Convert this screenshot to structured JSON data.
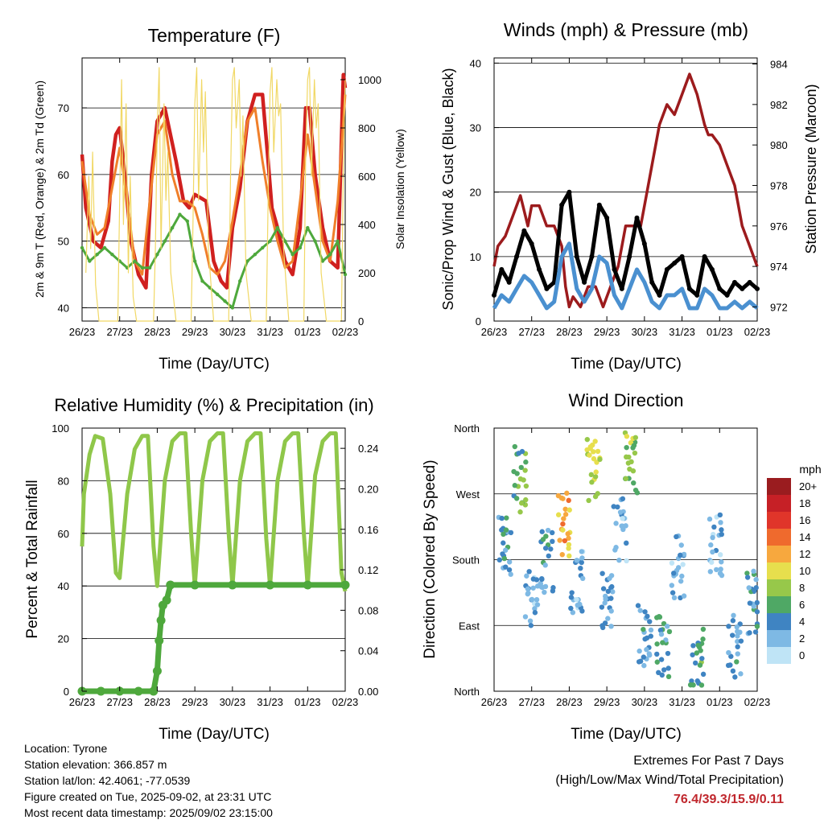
{
  "chart_data": [
    {
      "type": "line",
      "title": "Temperature (F)",
      "xlabel": "Time (Day/UTC)",
      "ylabel": "2m & 9m T (Red, Orange) & 2m Td (Green)",
      "ylabel_right": "Solar Insolation (Yellow)",
      "x_ticks": [
        "26/23",
        "27/23",
        "28/23",
        "29/23",
        "30/23",
        "31/23",
        "01/23",
        "02/23"
      ],
      "y_ticks": [
        40,
        50,
        60,
        70
      ],
      "y_right_ticks": [
        0,
        200,
        400,
        600,
        800,
        1000
      ],
      "ylim": [
        38,
        77.5
      ],
      "ylim_right": [
        0,
        1090
      ],
      "grid": true,
      "series": [
        {
          "color": "#d0201f",
          "x": [
            0,
            0.1,
            0.3,
            0.5,
            0.7,
            0.8,
            0.9,
            1.0,
            1.1,
            1.3,
            1.5,
            1.7,
            1.85,
            2.0,
            2.2,
            2.5,
            2.7,
            2.85,
            3.0,
            3.3,
            3.5,
            3.7,
            3.85,
            4.0,
            4.2,
            4.4,
            4.6,
            4.8,
            4.95,
            5.05,
            5.2,
            5.4,
            5.6,
            5.8,
            5.95,
            6.05,
            6.2,
            6.4,
            6.6,
            6.8,
            6.95,
            7.0
          ],
          "y": [
            63,
            55,
            50,
            49,
            53,
            62,
            66,
            67,
            62,
            50,
            45,
            43,
            60,
            68,
            70,
            62,
            56,
            55,
            57,
            56,
            47,
            44,
            43,
            52,
            58,
            68,
            72,
            72,
            62,
            55,
            52,
            47,
            45,
            52,
            70,
            70,
            60,
            52,
            47,
            46,
            75,
            73
          ]
        },
        {
          "color": "#f07f2a",
          "x": [
            0,
            0.2,
            0.4,
            0.6,
            0.8,
            1.0,
            1.2,
            1.4,
            1.6,
            1.8,
            2.0,
            2.2,
            2.4,
            2.6,
            2.8,
            3.0,
            3.2,
            3.4,
            3.6,
            3.8,
            4.0,
            4.2,
            4.4,
            4.6,
            4.8,
            5.0,
            5.2,
            5.4,
            5.6,
            5.8,
            6.0,
            6.2,
            6.4,
            6.6,
            6.8,
            7.0
          ],
          "y": [
            62,
            54,
            51,
            52,
            58,
            64,
            56,
            47,
            45,
            56,
            66,
            68,
            60,
            56,
            56,
            55,
            51,
            46,
            45,
            47,
            53,
            60,
            68,
            70,
            62,
            55,
            50,
            46,
            47,
            56,
            66,
            58,
            50,
            47,
            56,
            72
          ]
        },
        {
          "color": "#4ea83c",
          "x": [
            0,
            0.2,
            0.4,
            0.6,
            0.8,
            1.0,
            1.2,
            1.4,
            1.6,
            1.8,
            2.0,
            2.2,
            2.4,
            2.6,
            2.8,
            3.0,
            3.2,
            3.4,
            3.6,
            3.8,
            4.0,
            4.2,
            4.4,
            4.6,
            4.8,
            5.0,
            5.2,
            5.4,
            5.6,
            5.8,
            6.0,
            6.2,
            6.4,
            6.6,
            6.8,
            7.0
          ],
          "y": [
            49,
            47,
            48,
            49,
            48,
            47,
            46,
            47,
            46,
            46,
            48,
            50,
            52,
            54,
            53,
            47,
            44,
            43,
            42,
            41,
            40,
            44,
            47,
            48,
            49,
            50,
            52,
            50,
            48,
            49,
            52,
            50,
            47,
            48,
            50,
            45
          ]
        },
        {
          "color": "#f1d865",
          "x": [
            0.1,
            0.18,
            0.23,
            0.28,
            0.36,
            0.45,
            0.95,
            1.0,
            1.05,
            1.1,
            1.17,
            1.23,
            1.28,
            1.36,
            1.45,
            1.9,
            1.95,
            2.0,
            2.05,
            2.1,
            2.18,
            2.23,
            2.28,
            2.36,
            2.5,
            2.9,
            2.95,
            3.0,
            3.05,
            3.1,
            3.18,
            3.23,
            3.28,
            3.36,
            3.5,
            3.9,
            3.95,
            4.0,
            4.05,
            4.1,
            4.18,
            4.23,
            4.28,
            4.36,
            4.5,
            4.9,
            4.95,
            5.0,
            5.05,
            5.1,
            5.18,
            5.23,
            5.28,
            5.36,
            5.5,
            5.9,
            5.95,
            6.0,
            6.05,
            6.1,
            6.18,
            6.23,
            6.28,
            6.36,
            6.5,
            6.9,
            6.95,
            7.0
          ],
          "y_right": [
            200,
            600,
            300,
            700,
            150,
            0,
            0,
            500,
            1000,
            400,
            900,
            200,
            600,
            100,
            0,
            0,
            300,
            800,
            1050,
            300,
            900,
            500,
            700,
            200,
            0,
            0,
            400,
            900,
            1050,
            500,
            1000,
            700,
            950,
            300,
            0,
            0,
            600,
            1000,
            1050,
            800,
            1000,
            600,
            850,
            200,
            0,
            0,
            500,
            950,
            1050,
            700,
            1000,
            850,
            900,
            300,
            0,
            0,
            700,
            1000,
            1050,
            600,
            1000,
            800,
            900,
            200,
            0,
            0,
            650,
            1000
          ]
        }
      ]
    },
    {
      "type": "line",
      "title": "Winds (mph) & Pressure (mb)",
      "xlabel": "Time (Day/UTC)",
      "ylabel": "Sonic/Prop Wind & Gust (Blue, Black)",
      "ylabel_right": "Station Pressure (Maroon)",
      "x_ticks": [
        "26/23",
        "27/23",
        "28/23",
        "29/23",
        "30/23",
        "31/23",
        "01/23",
        "02/23"
      ],
      "y_ticks": [
        0,
        10,
        20,
        30,
        40
      ],
      "y_right_ticks": [
        972,
        974,
        976,
        978,
        980,
        982,
        984
      ],
      "ylim": [
        0,
        40.8
      ],
      "ylim_right": [
        971.3,
        984.3
      ],
      "grid": true,
      "series": [
        {
          "color": "#9c1b1d",
          "x": [
            0,
            0.1,
            0.3,
            0.5,
            0.7,
            0.9,
            1.0,
            1.2,
            1.4,
            1.6,
            1.8,
            1.9,
            2.0,
            2.1,
            2.3,
            2.5,
            2.7,
            2.9,
            3.1,
            3.3,
            3.5,
            3.7,
            3.9,
            4.0,
            4.2,
            4.4,
            4.6,
            4.8,
            5.0,
            5.2,
            5.4,
            5.6,
            5.7,
            5.8,
            6.0,
            6.2,
            6.4,
            6.6,
            6.8,
            7.0
          ],
          "y_right": [
            974,
            975,
            975.5,
            976.5,
            977.5,
            976,
            977,
            977,
            976,
            976,
            975,
            973,
            972,
            972.5,
            972,
            973,
            973,
            972,
            973,
            974,
            976,
            976,
            976,
            977,
            979,
            981,
            982,
            981.5,
            982.5,
            983.5,
            982.5,
            981,
            980.5,
            980.5,
            980,
            979,
            978,
            976,
            975,
            974
          ]
        },
        {
          "color": "#000000",
          "x": [
            0,
            0.2,
            0.4,
            0.6,
            0.8,
            1.0,
            1.2,
            1.4,
            1.6,
            1.8,
            2.0,
            2.2,
            2.4,
            2.6,
            2.8,
            3.0,
            3.2,
            3.4,
            3.6,
            3.8,
            4.0,
            4.2,
            4.4,
            4.6,
            4.8,
            5.0,
            5.2,
            5.4,
            5.6,
            5.8,
            6.0,
            6.2,
            6.4,
            6.6,
            6.8,
            7.0
          ],
          "y": [
            4,
            8,
            6,
            10,
            14,
            12,
            8,
            5,
            6,
            18,
            20,
            10,
            6,
            10,
            18,
            16,
            8,
            5,
            10,
            16,
            12,
            6,
            4,
            8,
            9,
            10,
            5,
            4,
            10,
            8,
            5,
            4,
            6,
            5,
            6,
            5
          ]
        },
        {
          "color": "#4a90d0",
          "x": [
            0,
            0.2,
            0.4,
            0.6,
            0.8,
            1.0,
            1.2,
            1.4,
            1.6,
            1.8,
            2.0,
            2.2,
            2.4,
            2.6,
            2.8,
            3.0,
            3.2,
            3.4,
            3.6,
            3.8,
            4.0,
            4.2,
            4.4,
            4.6,
            4.8,
            5.0,
            5.2,
            5.4,
            5.6,
            5.8,
            6.0,
            6.2,
            6.4,
            6.6,
            6.8,
            7.0
          ],
          "y": [
            2,
            4,
            3,
            5,
            7,
            6,
            4,
            2,
            3,
            10,
            12,
            5,
            3,
            5,
            10,
            9,
            4,
            2,
            5,
            8,
            6,
            3,
            2,
            4,
            4,
            5,
            2,
            2,
            5,
            4,
            2,
            2,
            3,
            2,
            3,
            2
          ]
        }
      ]
    },
    {
      "type": "line",
      "title": "Relative Humidity (%) & Precipitation (in)",
      "xlabel": "Time (Day/UTC)",
      "ylabel": "Percent & Total Rainfall",
      "x_ticks": [
        "26/23",
        "27/23",
        "28/23",
        "29/23",
        "30/23",
        "31/23",
        "01/23",
        "02/23"
      ],
      "y_ticks": [
        0,
        20,
        40,
        60,
        80,
        100
      ],
      "y_right_ticks": [
        "0.00",
        "0.04",
        "0.08",
        "0.12",
        "0.16",
        "0.20",
        "0.24"
      ],
      "ylim": [
        0,
        100
      ],
      "ylim_right": [
        0,
        0.26
      ],
      "grid": true,
      "series": [
        {
          "color": "#8fc74a",
          "x": [
            0,
            0.05,
            0.2,
            0.35,
            0.55,
            0.75,
            0.9,
            1.0,
            1.2,
            1.4,
            1.6,
            1.75,
            1.9,
            2.0,
            2.2,
            2.4,
            2.6,
            2.75,
            2.9,
            3.0,
            3.2,
            3.4,
            3.6,
            3.75,
            3.9,
            4.0,
            4.2,
            4.4,
            4.6,
            4.75,
            4.9,
            5.0,
            5.2,
            5.4,
            5.6,
            5.75,
            5.9,
            6.0,
            6.2,
            6.4,
            6.6,
            6.75,
            6.9,
            7.0
          ],
          "y": [
            55,
            75,
            90,
            97,
            96,
            75,
            45,
            43,
            75,
            92,
            97,
            97,
            55,
            40,
            80,
            95,
            98,
            98,
            60,
            40,
            80,
            95,
            98,
            98,
            60,
            40,
            80,
            95,
            98,
            98,
            58,
            40,
            80,
            95,
            98,
            98,
            60,
            40,
            82,
            95,
            98,
            98,
            45,
            38
          ]
        },
        {
          "color": "#4ea83c",
          "x": [
            0,
            0.5,
            1.0,
            1.5,
            1.9,
            2.0,
            2.05,
            2.1,
            2.15,
            2.25,
            2.35,
            3.0,
            4.0,
            5.0,
            6.0,
            7.0
          ],
          "y_right": [
            0,
            0,
            0,
            0,
            0,
            0.02,
            0.05,
            0.07,
            0.085,
            0.09,
            0.105,
            0.105,
            0.105,
            0.105,
            0.105,
            0.105
          ]
        }
      ]
    },
    {
      "type": "scatter",
      "title": "Wind Direction",
      "xlabel": "Time (Day/UTC)",
      "ylabel": "Direction (Colored By Speed)",
      "x_ticks": [
        "26/23",
        "27/23",
        "28/23",
        "29/23",
        "30/23",
        "31/23",
        "01/23",
        "02/23"
      ],
      "y_ticks": [
        "North",
        "East",
        "South",
        "West",
        "North"
      ],
      "ylim": [
        0,
        360
      ],
      "grid": true,
      "legend_title": "mph",
      "legend_labels": [
        "20+",
        "18",
        "16",
        "14",
        "12",
        "10",
        "8",
        "6",
        "4",
        "2",
        "0"
      ],
      "legend_colors": [
        "#9a1c1f",
        "#c62026",
        "#e0352a",
        "#ef6a2d",
        "#f7a83e",
        "#e7df4d",
        "#97c84a",
        "#4fa865",
        "#3f84c2",
        "#7eb9e4",
        "#bfe4f6"
      ],
      "clusters": [
        {
          "x": 0.3,
          "y": 200,
          "speed": 3
        },
        {
          "x": 0.7,
          "y": 290,
          "speed": 6
        },
        {
          "x": 1.0,
          "y": 120,
          "speed": 2
        },
        {
          "x": 1.4,
          "y": 180,
          "speed": 3
        },
        {
          "x": 1.85,
          "y": 230,
          "speed": 11
        },
        {
          "x": 2.2,
          "y": 150,
          "speed": 2
        },
        {
          "x": 2.65,
          "y": 300,
          "speed": 9
        },
        {
          "x": 3.0,
          "y": 130,
          "speed": 3
        },
        {
          "x": 3.35,
          "y": 220,
          "speed": 2
        },
        {
          "x": 3.65,
          "y": 310,
          "speed": 7
        },
        {
          "x": 4.0,
          "y": 80,
          "speed": 3
        },
        {
          "x": 4.5,
          "y": 60,
          "speed": 4
        },
        {
          "x": 4.9,
          "y": 170,
          "speed": 2
        },
        {
          "x": 5.4,
          "y": 50,
          "speed": 5
        },
        {
          "x": 5.9,
          "y": 200,
          "speed": 2
        },
        {
          "x": 6.4,
          "y": 60,
          "speed": 3
        },
        {
          "x": 6.9,
          "y": 120,
          "speed": 3
        }
      ]
    }
  ],
  "footer": {
    "location": "Location: Tyrone",
    "elevation": "Station elevation: 366.857 m",
    "latlon": "Station lat/lon: 42.4061; -77.0539",
    "created": "Figure created on Tue, 2025-09-02, at 23:31 UTC",
    "recent": "Most recent data timestamp: 2025/09/02 23:15:00"
  },
  "extremes": {
    "title": "Extremes For Past 7 Days",
    "subtitle": "(High/Low/Max Wind/Total Precipitation)",
    "value": "76.4/39.3/15.9/0.11"
  }
}
